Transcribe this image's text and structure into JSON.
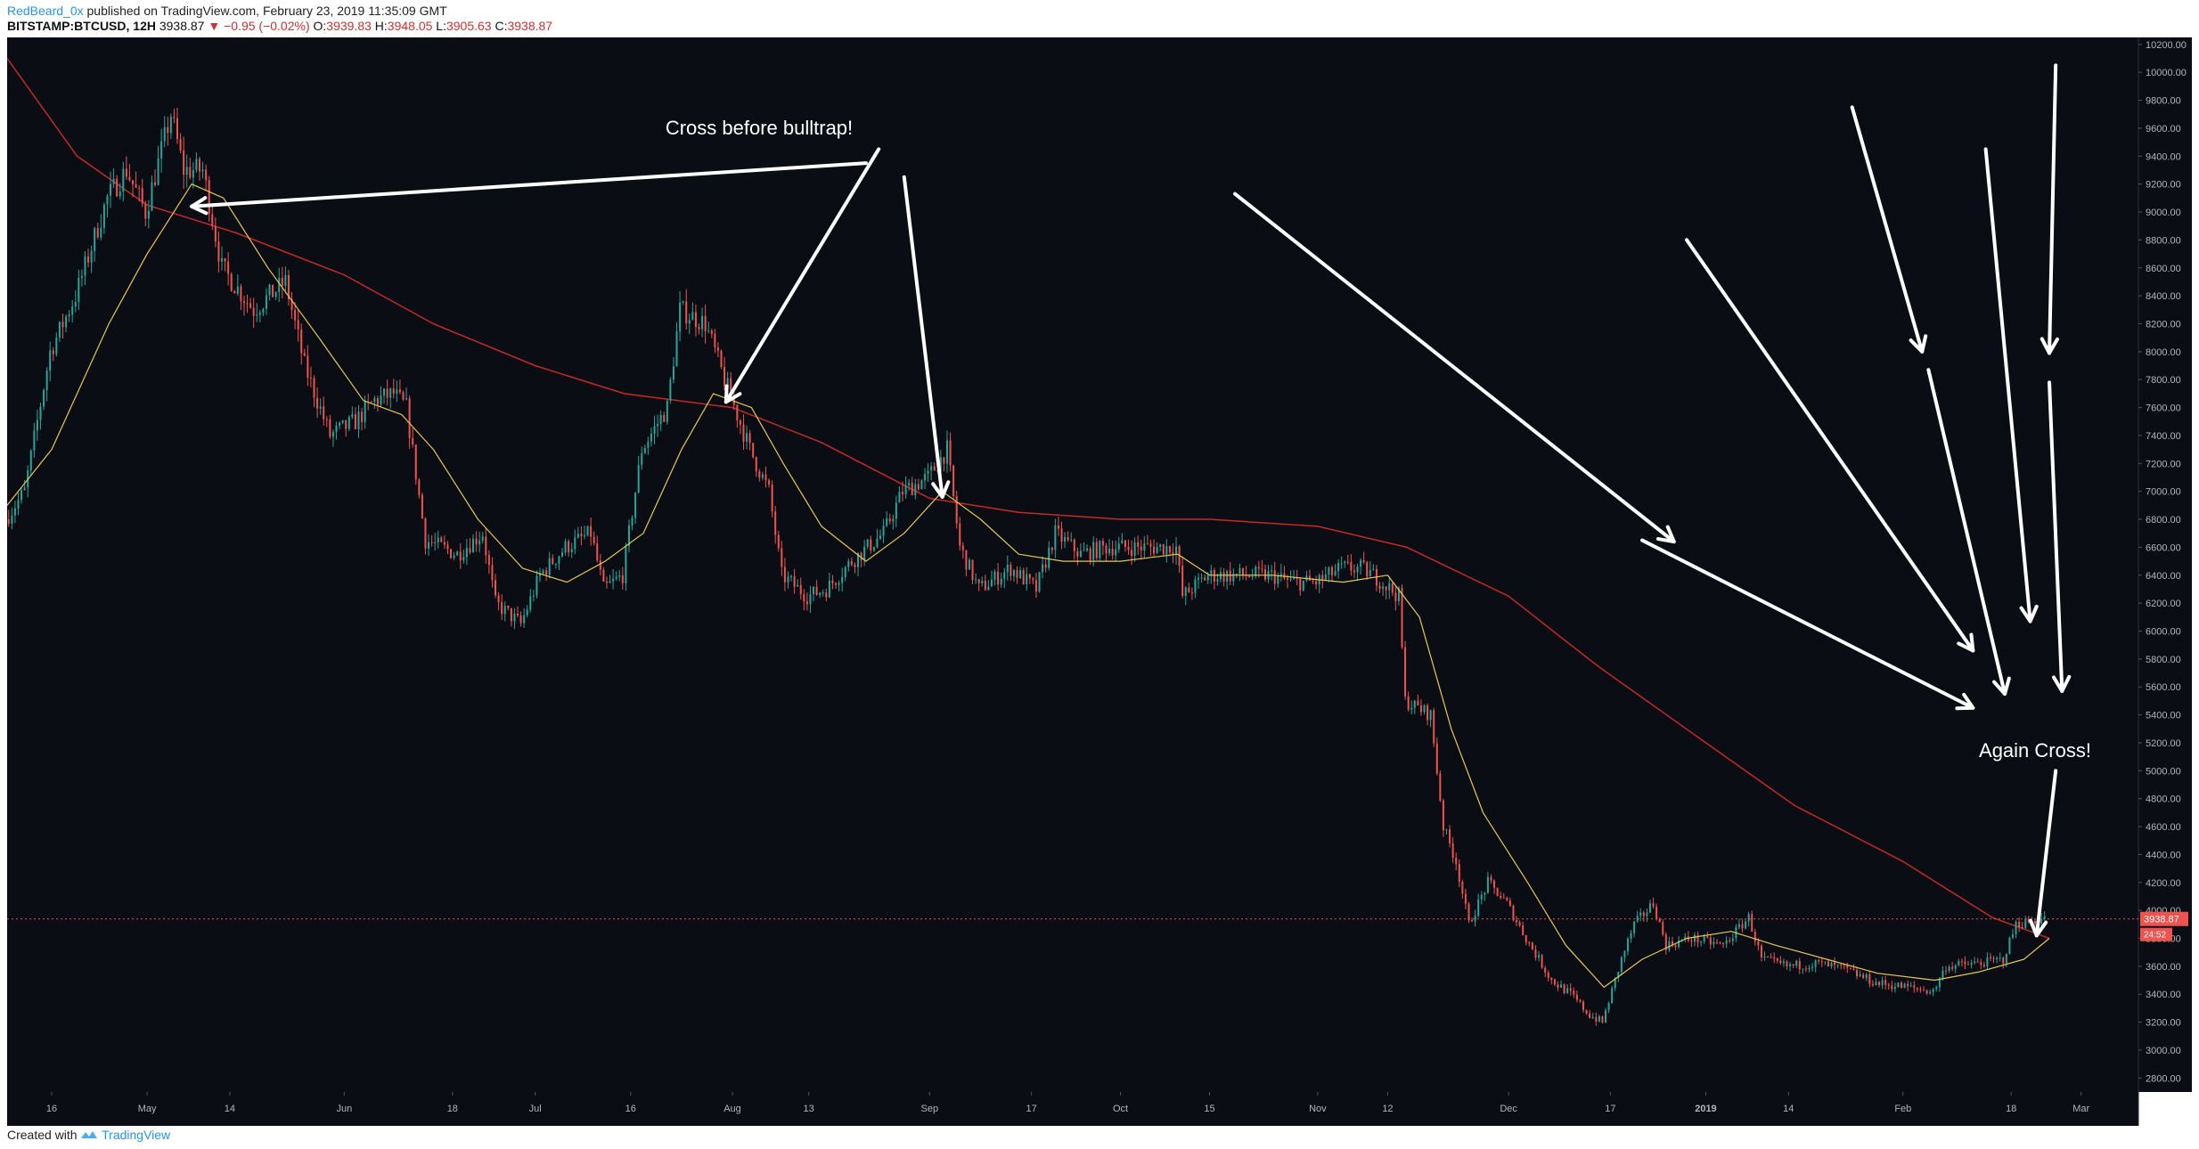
{
  "header": {
    "author": "RedBeard_0x",
    "published": "published on TradingView.com, February 23, 2019 11:35:09 GMT",
    "symbol": "BITSTAMP:BTCUSD, 12H",
    "last": "3938.87",
    "change_arrow": "▼",
    "change": "−0.95 (−0.02%)",
    "o_label": "O:",
    "o": "3939.83",
    "h_label": "H:",
    "h": "3948.05",
    "l_label": "L:",
    "l": "3905.63",
    "c_label": "C:",
    "c": "3938.87"
  },
  "footer": {
    "created_with": "Created with",
    "brand": "TradingView"
  },
  "colors": {
    "background": "#0b0d14",
    "up": "#26a69a",
    "down": "#ef5350",
    "ma_fast": "#e6c84f",
    "ma_slow": "#c62828",
    "annotation": "#ffffff",
    "axis_text": "#b2b5be",
    "price_tag": "#ef5350"
  },
  "chart_data": {
    "type": "candlestick",
    "interval": "12H",
    "ylim": [
      2700,
      10250
    ],
    "ytick_values": [
      2800,
      3000,
      3200,
      3400,
      3600,
      3800,
      4000,
      4200,
      4400,
      4600,
      4800,
      5000,
      5200,
      5400,
      5600,
      5800,
      6000,
      6200,
      6400,
      6600,
      6800,
      7000,
      7200,
      7400,
      7600,
      7800,
      8000,
      8200,
      8400,
      8600,
      8800,
      9000,
      9200,
      9400,
      9600,
      9800,
      10000,
      10200
    ],
    "ytick_labels": [
      "2800.00",
      "3000.00",
      "3200.00",
      "3400.00",
      "3600.00",
      "3800.00",
      "4000.00",
      "4200.00",
      "4400.00",
      "4600.00",
      "4800.00",
      "5000.00",
      "5200.00",
      "5400.00",
      "5600.00",
      "5800.00",
      "6000.00",
      "6200.00",
      "6400.00",
      "6600.00",
      "6800.00",
      "7000.00",
      "7200.00",
      "7400.00",
      "7600.00",
      "7800.00",
      "8000.00",
      "8200.00",
      "8400.00",
      "8600.00",
      "8800.00",
      "9000.00",
      "9200.00",
      "9400.00",
      "9600.00",
      "9800.00",
      "10000.00",
      "10200.00"
    ],
    "xlim": [
      "2018-04-09",
      "2019-03-10"
    ],
    "xticks": [
      {
        "date": "2018-04-16",
        "label": "16"
      },
      {
        "date": "2018-05-01",
        "label": "May"
      },
      {
        "date": "2018-05-14",
        "label": "14"
      },
      {
        "date": "2018-06-01",
        "label": "Jun"
      },
      {
        "date": "2018-06-18",
        "label": "18"
      },
      {
        "date": "2018-07-01",
        "label": "Jul"
      },
      {
        "date": "2018-07-16",
        "label": "16"
      },
      {
        "date": "2018-08-01",
        "label": "Aug"
      },
      {
        "date": "2018-08-13",
        "label": "13"
      },
      {
        "date": "2018-09-01",
        "label": "Sep"
      },
      {
        "date": "2018-09-17",
        "label": "17"
      },
      {
        "date": "2018-10-01",
        "label": "Oct"
      },
      {
        "date": "2018-10-15",
        "label": "15"
      },
      {
        "date": "2018-11-01",
        "label": "Nov"
      },
      {
        "date": "2018-11-12",
        "label": "12"
      },
      {
        "date": "2018-12-01",
        "label": "Dec"
      },
      {
        "date": "2018-12-17",
        "label": "17"
      },
      {
        "date": "2019-01-01",
        "label": "2019"
      },
      {
        "date": "2019-01-14",
        "label": "14"
      },
      {
        "date": "2019-02-01",
        "label": "Feb"
      },
      {
        "date": "2019-02-18",
        "label": "18"
      },
      {
        "date": "2019-03-01",
        "label": "Mar"
      }
    ],
    "price_path": [
      [
        "2018-04-09",
        6800
      ],
      [
        "2018-04-12",
        7000
      ],
      [
        "2018-04-16",
        8000
      ],
      [
        "2018-04-20",
        8400
      ],
      [
        "2018-04-25",
        9100
      ],
      [
        "2018-04-28",
        9300
      ],
      [
        "2018-05-01",
        9000
      ],
      [
        "2018-05-05",
        9700
      ],
      [
        "2018-05-07",
        9300
      ],
      [
        "2018-05-10",
        9300
      ],
      [
        "2018-05-13",
        8600
      ],
      [
        "2018-05-18",
        8300
      ],
      [
        "2018-05-23",
        8500
      ],
      [
        "2018-05-26",
        7900
      ],
      [
        "2018-05-30",
        7400
      ],
      [
        "2018-06-03",
        7500
      ],
      [
        "2018-06-06",
        7650
      ],
      [
        "2018-06-09",
        7700
      ],
      [
        "2018-06-11",
        7600
      ],
      [
        "2018-06-14",
        6650
      ],
      [
        "2018-06-19",
        6550
      ],
      [
        "2018-06-23",
        6700
      ],
      [
        "2018-06-25",
        6200
      ],
      [
        "2018-06-29",
        6050
      ],
      [
        "2018-07-02",
        6400
      ],
      [
        "2018-07-06",
        6600
      ],
      [
        "2018-07-10",
        6700
      ],
      [
        "2018-07-12",
        6300
      ],
      [
        "2018-07-15",
        6400
      ],
      [
        "2018-07-18",
        7300
      ],
      [
        "2018-07-22",
        7600
      ],
      [
        "2018-07-24",
        8300
      ],
      [
        "2018-07-28",
        8200
      ],
      [
        "2018-07-31",
        7800
      ],
      [
        "2018-08-04",
        7300
      ],
      [
        "2018-08-07",
        7000
      ],
      [
        "2018-08-09",
        6400
      ],
      [
        "2018-08-13",
        6250
      ],
      [
        "2018-08-16",
        6300
      ],
      [
        "2018-08-20",
        6500
      ],
      [
        "2018-08-25",
        6700
      ],
      [
        "2018-08-28",
        7000
      ],
      [
        "2018-09-01",
        7100
      ],
      [
        "2018-09-04",
        7300
      ],
      [
        "2018-09-06",
        6600
      ],
      [
        "2018-09-09",
        6300
      ],
      [
        "2018-09-14",
        6450
      ],
      [
        "2018-09-18",
        6300
      ],
      [
        "2018-09-21",
        6700
      ],
      [
        "2018-09-25",
        6550
      ],
      [
        "2018-09-29",
        6600
      ],
      [
        "2018-10-06",
        6600
      ],
      [
        "2018-10-10",
        6600
      ],
      [
        "2018-10-11",
        6250
      ],
      [
        "2018-10-15",
        6400
      ],
      [
        "2018-10-20",
        6400
      ],
      [
        "2018-10-25",
        6400
      ],
      [
        "2018-10-28",
        6350
      ],
      [
        "2018-11-01",
        6350
      ],
      [
        "2018-11-05",
        6450
      ],
      [
        "2018-11-08",
        6450
      ],
      [
        "2018-11-10",
        6400
      ],
      [
        "2018-11-14",
        6250
      ],
      [
        "2018-11-15",
        5500
      ],
      [
        "2018-11-19",
        5400
      ],
      [
        "2018-11-21",
        4600
      ],
      [
        "2018-11-23",
        4350
      ],
      [
        "2018-11-25",
        3900
      ],
      [
        "2018-11-28",
        4200
      ],
      [
        "2018-12-01",
        4050
      ],
      [
        "2018-12-04",
        3800
      ],
      [
        "2018-12-08",
        3500
      ],
      [
        "2018-12-11",
        3400
      ],
      [
        "2018-12-14",
        3250
      ],
      [
        "2018-12-16",
        3200
      ],
      [
        "2018-12-19",
        3650
      ],
      [
        "2018-12-21",
        3900
      ],
      [
        "2018-12-24",
        4050
      ],
      [
        "2018-12-26",
        3750
      ],
      [
        "2018-12-30",
        3800
      ],
      [
        "2019-01-04",
        3750
      ],
      [
        "2019-01-08",
        3950
      ],
      [
        "2019-01-10",
        3650
      ],
      [
        "2019-01-14",
        3600
      ],
      [
        "2019-01-19",
        3620
      ],
      [
        "2019-01-23",
        3580
      ],
      [
        "2019-01-28",
        3480
      ],
      [
        "2019-02-02",
        3450
      ],
      [
        "2019-02-06",
        3420
      ],
      [
        "2019-02-08",
        3600
      ],
      [
        "2019-02-13",
        3620
      ],
      [
        "2019-02-17",
        3650
      ],
      [
        "2019-02-19",
        3900
      ],
      [
        "2019-02-23",
        3939
      ]
    ],
    "series": [
      {
        "name": "",
        "kind": "ma_fast",
        "points": [
          [
            "2018-04-09",
            6900
          ],
          [
            "2018-04-16",
            7300
          ],
          [
            "2018-04-25",
            8200
          ],
          [
            "2018-05-01",
            8700
          ],
          [
            "2018-05-08",
            9200
          ],
          [
            "2018-05-13",
            9100
          ],
          [
            "2018-05-20",
            8600
          ],
          [
            "2018-05-28",
            8100
          ],
          [
            "2018-06-04",
            7650
          ],
          [
            "2018-06-10",
            7550
          ],
          [
            "2018-06-15",
            7300
          ],
          [
            "2018-06-22",
            6800
          ],
          [
            "2018-06-29",
            6450
          ],
          [
            "2018-07-06",
            6350
          ],
          [
            "2018-07-12",
            6500
          ],
          [
            "2018-07-18",
            6700
          ],
          [
            "2018-07-24",
            7300
          ],
          [
            "2018-07-29",
            7700
          ],
          [
            "2018-08-04",
            7600
          ],
          [
            "2018-08-09",
            7200
          ],
          [
            "2018-08-15",
            6750
          ],
          [
            "2018-08-22",
            6500
          ],
          [
            "2018-08-28",
            6700
          ],
          [
            "2018-09-03",
            7000
          ],
          [
            "2018-09-09",
            6800
          ],
          [
            "2018-09-15",
            6550
          ],
          [
            "2018-09-22",
            6500
          ],
          [
            "2018-10-01",
            6500
          ],
          [
            "2018-10-10",
            6550
          ],
          [
            "2018-10-15",
            6400
          ],
          [
            "2018-10-25",
            6400
          ],
          [
            "2018-11-05",
            6350
          ],
          [
            "2018-11-12",
            6400
          ],
          [
            "2018-11-17",
            6100
          ],
          [
            "2018-11-22",
            5300
          ],
          [
            "2018-11-27",
            4700
          ],
          [
            "2018-12-04",
            4200
          ],
          [
            "2018-12-10",
            3750
          ],
          [
            "2018-12-16",
            3450
          ],
          [
            "2018-12-22",
            3650
          ],
          [
            "2018-12-29",
            3800
          ],
          [
            "2019-01-05",
            3850
          ],
          [
            "2019-01-12",
            3750
          ],
          [
            "2019-01-20",
            3650
          ],
          [
            "2019-01-28",
            3550
          ],
          [
            "2019-02-06",
            3500
          ],
          [
            "2019-02-13",
            3560
          ],
          [
            "2019-02-20",
            3650
          ],
          [
            "2019-02-24",
            3800
          ]
        ]
      },
      {
        "name": "",
        "kind": "ma_slow",
        "points": [
          [
            "2018-04-09",
            10100
          ],
          [
            "2018-04-20",
            9400
          ],
          [
            "2018-05-01",
            9050
          ],
          [
            "2018-05-15",
            8850
          ],
          [
            "2018-06-01",
            8550
          ],
          [
            "2018-06-15",
            8200
          ],
          [
            "2018-07-01",
            7900
          ],
          [
            "2018-07-15",
            7700
          ],
          [
            "2018-08-01",
            7600
          ],
          [
            "2018-08-15",
            7350
          ],
          [
            "2018-09-01",
            6950
          ],
          [
            "2018-09-15",
            6850
          ],
          [
            "2018-10-01",
            6800
          ],
          [
            "2018-10-15",
            6800
          ],
          [
            "2018-11-01",
            6750
          ],
          [
            "2018-11-15",
            6600
          ],
          [
            "2018-12-01",
            6250
          ],
          [
            "2018-12-15",
            5750
          ],
          [
            "2019-01-01",
            5200
          ],
          [
            "2019-01-15",
            4750
          ],
          [
            "2019-02-01",
            4350
          ],
          [
            "2019-02-15",
            3950
          ],
          [
            "2019-02-24",
            3800
          ]
        ]
      }
    ],
    "last_price": 3938.87,
    "price_tag": "3938.87",
    "countdown_tag": "24:52",
    "annotations": [
      {
        "text": "Cross before bulltrap!"
      },
      {
        "text": "Again Cross!"
      }
    ],
    "grid": false,
    "legend": "none"
  }
}
